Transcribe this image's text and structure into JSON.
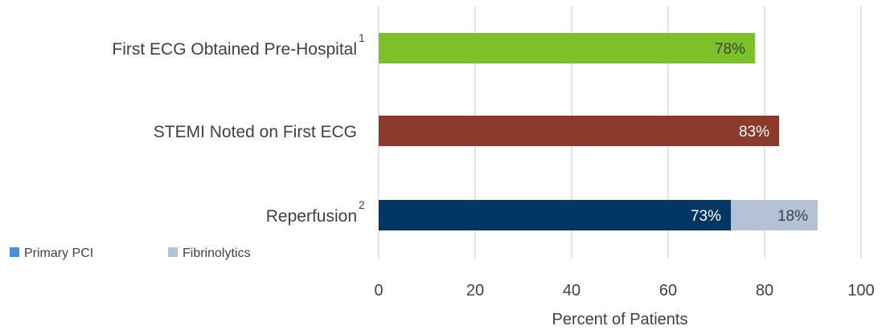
{
  "chart_data": {
    "type": "bar",
    "orientation": "horizontal",
    "stacked": true,
    "categories": [
      {
        "label": "First ECG Obtained Pre-Hospital",
        "superscript": "1"
      },
      {
        "label": "STEMI Noted on First ECG",
        "superscript": ""
      },
      {
        "label": "Reperfusion",
        "superscript": "2"
      }
    ],
    "bars": [
      {
        "category": "First ECG Obtained Pre-Hospital",
        "segments": [
          {
            "value": 78,
            "label": "78%",
            "color": "#7DC12A",
            "label_color": "#404040"
          }
        ]
      },
      {
        "category": "STEMI Noted on First ECG",
        "segments": [
          {
            "value": 83,
            "label": "83%",
            "color": "#8B3A2B",
            "label_color": "#ffffff"
          }
        ]
      },
      {
        "category": "Reperfusion",
        "segments": [
          {
            "series": "Primary PCI",
            "value": 73,
            "label": "73%",
            "color": "#003764",
            "label_color": "#ffffff"
          },
          {
            "series": "Fibrinolytics",
            "value": 18,
            "label": "18%",
            "color": "#B3C2D6",
            "label_color": "#404040"
          }
        ]
      }
    ],
    "legend": {
      "placement": "bottom-left",
      "items": [
        {
          "name": "Primary PCI",
          "color": "#4A90D9"
        },
        {
          "name": "Fibrinolytics",
          "color": "#B3C2D6"
        }
      ]
    },
    "xlabel": "Percent of Patients",
    "xlim": [
      0,
      100
    ],
    "xticks": [
      0,
      20,
      40,
      60,
      80,
      100
    ],
    "xtick_labels": [
      "0",
      "20",
      "40",
      "60",
      "80",
      "100"
    ],
    "grid": {
      "vertical": true,
      "color": "#d9d9d9"
    }
  }
}
